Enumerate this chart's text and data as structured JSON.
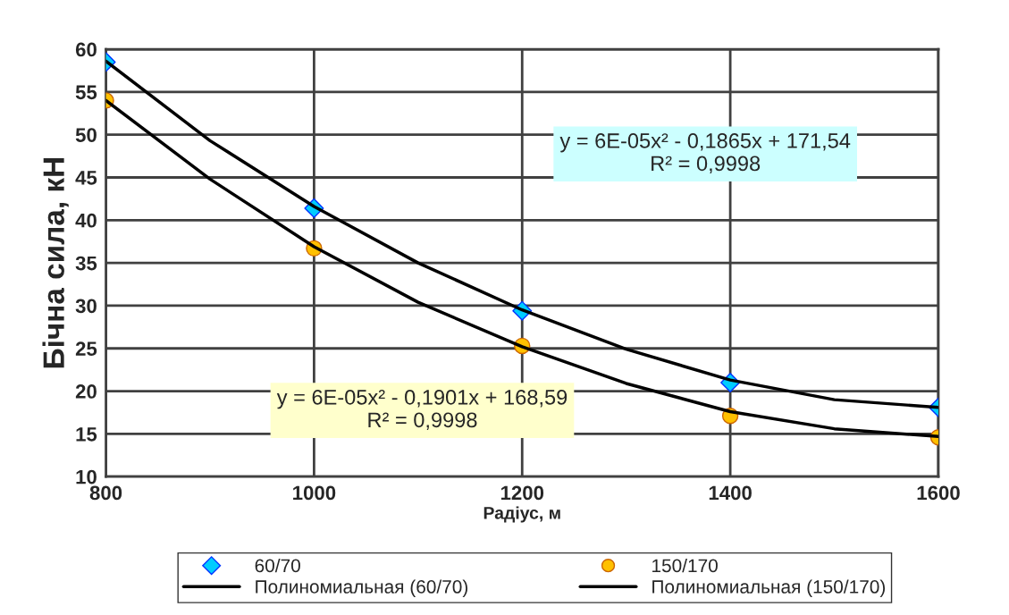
{
  "chart_data": {
    "type": "scatter",
    "xlabel": "Радіус, м",
    "ylabel": "Бічна сила, кН",
    "xlim": [
      800,
      1600
    ],
    "xticks": [
      800,
      1000,
      1200,
      1400,
      1600
    ],
    "ylim": [
      10,
      60
    ],
    "yticks": [
      10,
      15,
      20,
      25,
      30,
      35,
      40,
      45,
      50,
      55,
      60
    ],
    "grid": true,
    "legend": "bottom",
    "series": [
      {
        "name": "60/70",
        "marker": "diamond",
        "color": "#00ccff",
        "x": [
          800,
          1000,
          1200,
          1400,
          1600
        ],
        "values": [
          58.5,
          41.4,
          29.4,
          21.0,
          18.1
        ]
      },
      {
        "name": "150/170",
        "marker": "circle",
        "color": "#ffc000",
        "x": [
          800,
          1000,
          1200,
          1400,
          1600
        ],
        "values": [
          54.0,
          36.7,
          25.3,
          17.1,
          14.6
        ]
      },
      {
        "name": "Полиномиальная (60/70)",
        "type": "line",
        "marker": "none",
        "line_style": "solid",
        "color": "#000000",
        "x": [
          800,
          900,
          1000,
          1100,
          1200,
          1300,
          1400,
          1500,
          1600
        ],
        "values": [
          58.6,
          49.3,
          41.6,
          35.0,
          29.5,
          24.9,
          21.3,
          19.0,
          18.1
        ]
      },
      {
        "name": "Полиномиальная (150/170)",
        "type": "line",
        "marker": "none",
        "line_style": "solid",
        "color": "#000000",
        "x": [
          800,
          900,
          1000,
          1100,
          1200,
          1300,
          1400,
          1500,
          1600
        ],
        "values": [
          54.0,
          44.8,
          36.9,
          30.4,
          25.2,
          20.9,
          17.6,
          15.6,
          14.7
        ]
      }
    ],
    "annotations": [
      "y = 6E-05x² - 0,1865x + 171,54\nR² = 0,9998",
      "y = 6E-05x² - 0,1901x + 168,59\nR² = 0,9998"
    ]
  }
}
